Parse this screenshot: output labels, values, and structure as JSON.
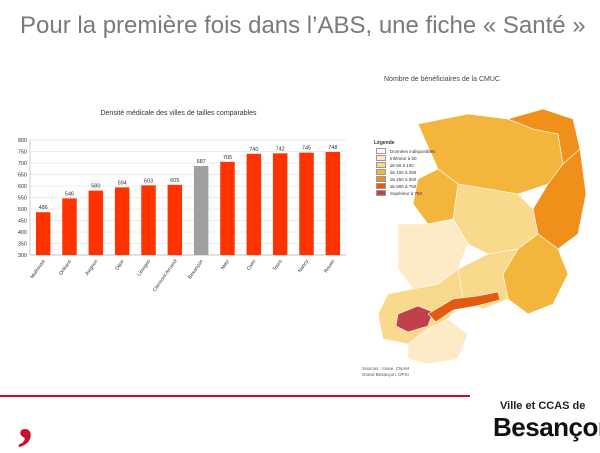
{
  "slide": {
    "title": "Pour la première fois dans l’ABS, une fiche « Santé »"
  },
  "chart_data": {
    "type": "bar",
    "title": "Densité médicale des villes de tailles comparables",
    "categories": [
      "Mulhouse",
      "Orléans",
      "Avignon",
      "Dijon",
      "Limoges",
      "Clermont-ferrand",
      "Besançon",
      "Metz",
      "Caen",
      "Tours",
      "Nancy",
      "Rouen"
    ],
    "values": [
      486,
      546,
      580,
      594,
      603,
      605,
      687,
      705,
      740,
      742,
      745,
      748
    ],
    "colors": [
      "#ff3300",
      "#ff3300",
      "#ff3300",
      "#ff3300",
      "#ff3300",
      "#ff3300",
      "#a0a0a0",
      "#ff3300",
      "#ff3300",
      "#ff3300",
      "#ff3300",
      "#ff3300"
    ],
    "ylim": [
      300,
      800
    ],
    "yticks": [
      300,
      350,
      400,
      450,
      500,
      550,
      600,
      650,
      700,
      750,
      800
    ],
    "grid": true
  },
  "map": {
    "title": "Nombre de bénéficiaires de la CMUC",
    "legend_title": "Légende",
    "legend": [
      {
        "label": "Données indisponibles",
        "color": "#ffffff"
      },
      {
        "label": "Inférieur à 50",
        "color": "#fdebc7"
      },
      {
        "label": "de 50 à 100",
        "color": "#f9d98c"
      },
      {
        "label": "de 100 à 250",
        "color": "#f4b53d"
      },
      {
        "label": "de 250 à 500",
        "color": "#f0901a"
      },
      {
        "label": "de 500 à 750",
        "color": "#e45a10"
      },
      {
        "label": "Supérieur à 750",
        "color": "#c0404c"
      }
    ],
    "sources": [
      "Sources : Insee, CNAM",
      "Grand Besançon, DPSI"
    ]
  },
  "logo": {
    "line1": "Ville et CCAS de",
    "line2": "Besançon"
  },
  "brand": {
    "accent": "#c8102e"
  }
}
